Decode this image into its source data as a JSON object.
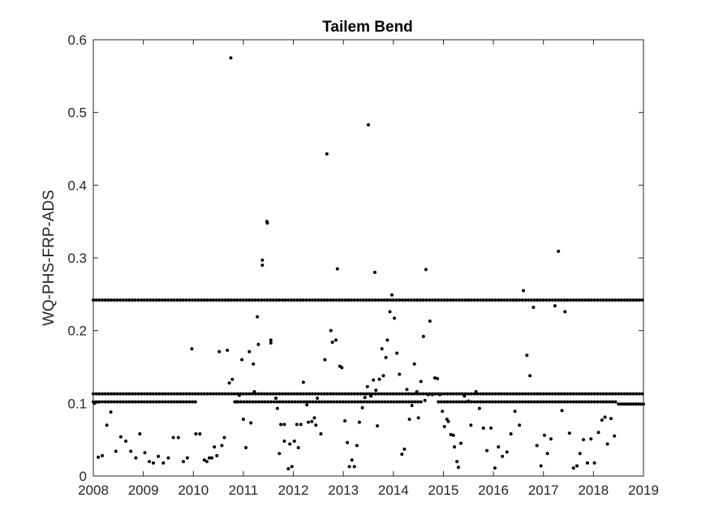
{
  "chart_data": {
    "type": "scatter",
    "title": "Tailem Bend",
    "xlabel": "",
    "ylabel": "WQ-PHS-FRP-ADS",
    "xlim": [
      2008,
      2019
    ],
    "ylim": [
      0,
      0.6
    ],
    "xticks": [
      "2008",
      "2009",
      "2010",
      "2011",
      "2012",
      "2013",
      "2014",
      "2015",
      "2016",
      "2017",
      "2018",
      "2019"
    ],
    "yticks": [
      "0",
      "0.1",
      "0.2",
      "0.3",
      "0.4",
      "0.5",
      "0.6"
    ],
    "grid": false,
    "marker_color": "#000000",
    "reference_rows": [
      {
        "y": 0.242,
        "x_start": 2008.0,
        "x_end": 2019.0,
        "step": 0.06
      },
      {
        "y": 0.113,
        "x_start": 2008.0,
        "x_end": 2019.0,
        "step": 0.06
      },
      {
        "y": 0.102,
        "x_start": 2008.0,
        "x_end": 2010.07,
        "step": 0.06
      },
      {
        "y": 0.102,
        "x_start": 2010.83,
        "x_end": 2014.6,
        "step": 0.06
      },
      {
        "y": 0.102,
        "x_start": 2014.9,
        "x_end": 2018.45,
        "step": 0.06
      },
      {
        "y": 0.099,
        "x_start": 2018.5,
        "x_end": 2019.0,
        "step": 0.05
      }
    ],
    "points": [
      [
        2008.02,
        0.1
      ],
      [
        2008.1,
        0.026
      ],
      [
        2008.18,
        0.028
      ],
      [
        2008.27,
        0.07
      ],
      [
        2008.35,
        0.088
      ],
      [
        2008.45,
        0.034
      ],
      [
        2008.55,
        0.054
      ],
      [
        2008.65,
        0.048
      ],
      [
        2008.75,
        0.034
      ],
      [
        2008.85,
        0.025
      ],
      [
        2008.93,
        0.058
      ],
      [
        2009.03,
        0.032
      ],
      [
        2009.12,
        0.02
      ],
      [
        2009.2,
        0.018
      ],
      [
        2009.3,
        0.027
      ],
      [
        2009.4,
        0.018
      ],
      [
        2009.5,
        0.025
      ],
      [
        2009.6,
        0.053
      ],
      [
        2009.7,
        0.053
      ],
      [
        2009.8,
        0.02
      ],
      [
        2009.88,
        0.025
      ],
      [
        2009.97,
        0.175
      ],
      [
        2010.05,
        0.058
      ],
      [
        2010.13,
        0.058
      ],
      [
        2010.22,
        0.022
      ],
      [
        2010.27,
        0.02
      ],
      [
        2010.32,
        0.025
      ],
      [
        2010.37,
        0.025
      ],
      [
        2010.42,
        0.04
      ],
      [
        2010.47,
        0.028
      ],
      [
        2010.52,
        0.171
      ],
      [
        2010.57,
        0.042
      ],
      [
        2010.62,
        0.053
      ],
      [
        2010.68,
        0.173
      ],
      [
        2010.72,
        0.128
      ],
      [
        2010.75,
        0.575
      ],
      [
        2010.78,
        0.133
      ],
      [
        2010.85,
        0.102
      ],
      [
        2010.92,
        0.111
      ],
      [
        2010.97,
        0.16
      ],
      [
        2011.0,
        0.078
      ],
      [
        2011.05,
        0.039
      ],
      [
        2011.12,
        0.171
      ],
      [
        2011.15,
        0.073
      ],
      [
        2011.2,
        0.154
      ],
      [
        2011.22,
        0.116
      ],
      [
        2011.3,
        0.181
      ],
      [
        2011.28,
        0.219
      ],
      [
        2011.38,
        0.29
      ],
      [
        2011.38,
        0.297
      ],
      [
        2011.47,
        0.35
      ],
      [
        2011.48,
        0.348
      ],
      [
        2011.55,
        0.183
      ],
      [
        2011.55,
        0.187
      ],
      [
        2011.65,
        0.107
      ],
      [
        2011.68,
        0.093
      ],
      [
        2011.72,
        0.031
      ],
      [
        2011.75,
        0.071
      ],
      [
        2011.82,
        0.071
      ],
      [
        2011.82,
        0.048
      ],
      [
        2011.9,
        0.01
      ],
      [
        2011.93,
        0.044
      ],
      [
        2011.97,
        0.013
      ],
      [
        2012.02,
        0.048
      ],
      [
        2012.07,
        0.071
      ],
      [
        2012.1,
        0.039
      ],
      [
        2012.15,
        0.071
      ],
      [
        2012.2,
        0.129
      ],
      [
        2012.27,
        0.098
      ],
      [
        2012.3,
        0.074
      ],
      [
        2012.37,
        0.075
      ],
      [
        2012.42,
        0.08
      ],
      [
        2012.45,
        0.07
      ],
      [
        2012.48,
        0.107
      ],
      [
        2012.55,
        0.058
      ],
      [
        2012.63,
        0.16
      ],
      [
        2012.67,
        0.443
      ],
      [
        2012.75,
        0.2
      ],
      [
        2012.78,
        0.184
      ],
      [
        2012.85,
        0.187
      ],
      [
        2012.88,
        0.285
      ],
      [
        2012.93,
        0.151
      ],
      [
        2012.97,
        0.149
      ],
      [
        2013.03,
        0.076
      ],
      [
        2013.08,
        0.046
      ],
      [
        2013.12,
        0.013
      ],
      [
        2013.17,
        0.022
      ],
      [
        2013.22,
        0.013
      ],
      [
        2013.27,
        0.042
      ],
      [
        2013.32,
        0.074
      ],
      [
        2013.38,
        0.094
      ],
      [
        2013.43,
        0.108
      ],
      [
        2013.48,
        0.123
      ],
      [
        2013.5,
        0.483
      ],
      [
        2013.55,
        0.11
      ],
      [
        2013.6,
        0.132
      ],
      [
        2013.63,
        0.28
      ],
      [
        2013.65,
        0.118
      ],
      [
        2013.68,
        0.069
      ],
      [
        2013.72,
        0.133
      ],
      [
        2013.77,
        0.175
      ],
      [
        2013.8,
        0.138
      ],
      [
        2013.85,
        0.163
      ],
      [
        2013.88,
        0.187
      ],
      [
        2013.93,
        0.226
      ],
      [
        2013.97,
        0.249
      ],
      [
        2014.02,
        0.217
      ],
      [
        2014.07,
        0.169
      ],
      [
        2014.12,
        0.14
      ],
      [
        2014.17,
        0.03
      ],
      [
        2014.22,
        0.037
      ],
      [
        2014.27,
        0.119
      ],
      [
        2014.32,
        0.078
      ],
      [
        2014.37,
        0.097
      ],
      [
        2014.42,
        0.154
      ],
      [
        2014.47,
        0.116
      ],
      [
        2014.5,
        0.08
      ],
      [
        2014.55,
        0.13
      ],
      [
        2014.6,
        0.192
      ],
      [
        2014.63,
        0.104
      ],
      [
        2014.65,
        0.284
      ],
      [
        2014.7,
        0.112
      ],
      [
        2014.73,
        0.213
      ],
      [
        2014.78,
        0.112
      ],
      [
        2014.83,
        0.135
      ],
      [
        2014.88,
        0.134
      ],
      [
        2014.93,
        0.112
      ],
      [
        2014.98,
        0.089
      ],
      [
        2015.02,
        0.068
      ],
      [
        2015.07,
        0.078
      ],
      [
        2015.1,
        0.075
      ],
      [
        2015.15,
        0.057
      ],
      [
        2015.2,
        0.056
      ],
      [
        2015.22,
        0.04
      ],
      [
        2015.27,
        0.02
      ],
      [
        2015.3,
        0.012
      ],
      [
        2015.35,
        0.045
      ],
      [
        2015.42,
        0.11
      ],
      [
        2015.5,
        0.103
      ],
      [
        2015.55,
        0.07
      ],
      [
        2015.65,
        0.116
      ],
      [
        2015.72,
        0.093
      ],
      [
        2015.8,
        0.066
      ],
      [
        2015.87,
        0.035
      ],
      [
        2015.95,
        0.066
      ],
      [
        2016.03,
        0.011
      ],
      [
        2016.1,
        0.04
      ],
      [
        2016.18,
        0.027
      ],
      [
        2016.27,
        0.033
      ],
      [
        2016.35,
        0.058
      ],
      [
        2016.43,
        0.089
      ],
      [
        2016.52,
        0.07
      ],
      [
        2016.6,
        0.255
      ],
      [
        2016.67,
        0.166
      ],
      [
        2016.73,
        0.138
      ],
      [
        2016.8,
        0.232
      ],
      [
        2016.87,
        0.042
      ],
      [
        2016.95,
        0.014
      ],
      [
        2017.02,
        0.056
      ],
      [
        2017.08,
        0.031
      ],
      [
        2017.15,
        0.051
      ],
      [
        2017.23,
        0.234
      ],
      [
        2017.3,
        0.309
      ],
      [
        2017.37,
        0.09
      ],
      [
        2017.43,
        0.226
      ],
      [
        2017.52,
        0.059
      ],
      [
        2017.6,
        0.011
      ],
      [
        2017.67,
        0.014
      ],
      [
        2017.73,
        0.031
      ],
      [
        2017.8,
        0.05
      ],
      [
        2017.88,
        0.018
      ],
      [
        2017.95,
        0.051
      ],
      [
        2018.02,
        0.018
      ],
      [
        2018.1,
        0.06
      ],
      [
        2018.17,
        0.077
      ],
      [
        2018.23,
        0.081
      ],
      [
        2018.28,
        0.044
      ],
      [
        2018.35,
        0.079
      ],
      [
        2018.42,
        0.055
      ]
    ]
  }
}
